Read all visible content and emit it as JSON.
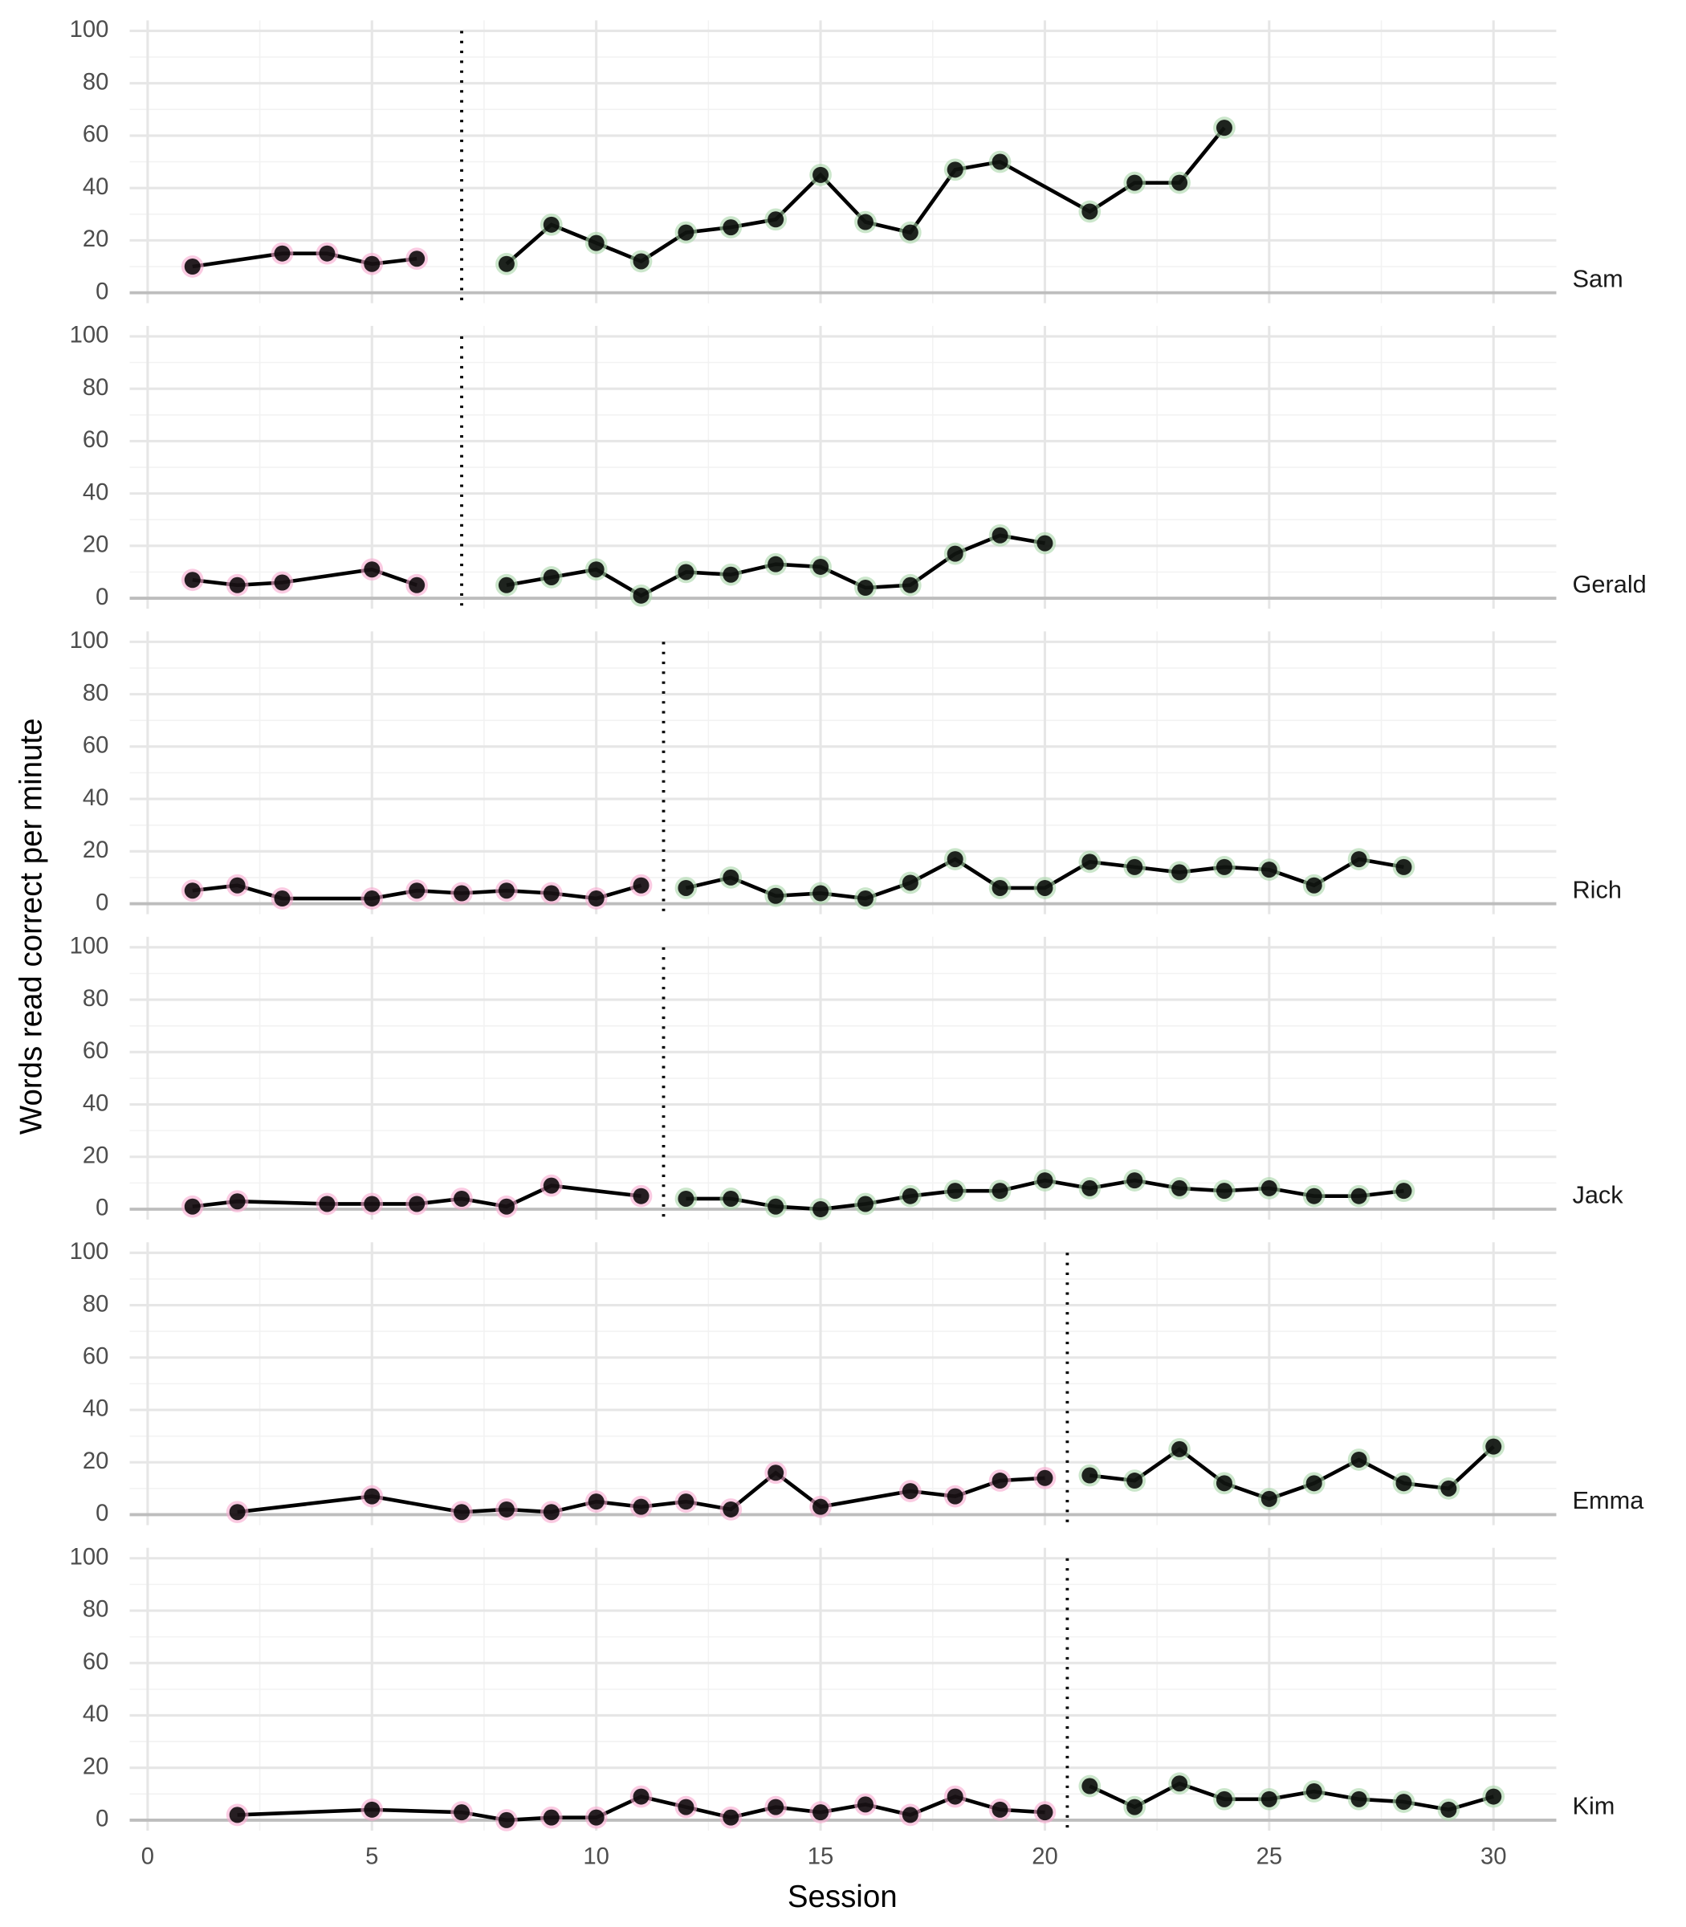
{
  "chart_data": {
    "type": "line",
    "xlabel": "Session",
    "ylabel": "Words read correct per minute",
    "xlim": [
      -0.4,
      31.4
    ],
    "ylim": [
      -4,
      104
    ],
    "xticks": [
      0,
      5,
      10,
      15,
      20,
      25,
      30
    ],
    "yticks": [
      0,
      20,
      40,
      60,
      80,
      100
    ],
    "grid": true,
    "line_color": "#000000",
    "panels": [
      {
        "label": "Sam",
        "phase_change": 7,
        "series": [
          {
            "color": "#f7a8cf",
            "x": [
              1,
              3,
              4,
              5,
              6
            ],
            "values": [
              10,
              15,
              15,
              11,
              13
            ]
          },
          {
            "color": "#a9d6a9",
            "x": [
              8,
              9,
              10,
              11,
              12,
              13,
              14,
              15,
              16,
              17,
              18,
              19,
              21,
              22,
              23,
              24
            ],
            "values": [
              11,
              26,
              19,
              12,
              23,
              25,
              28,
              45,
              27,
              23,
              47,
              50,
              31,
              42,
              42,
              63
            ]
          }
        ]
      },
      {
        "label": "Gerald",
        "phase_change": 7,
        "series": [
          {
            "color": "#f7a8cf",
            "x": [
              1,
              2,
              3,
              5,
              6
            ],
            "values": [
              7,
              5,
              6,
              11,
              5
            ]
          },
          {
            "color": "#a9d6a9",
            "x": [
              8,
              9,
              10,
              11,
              12,
              13,
              14,
              15,
              16,
              17,
              18,
              19,
              20
            ],
            "values": [
              5,
              8,
              11,
              1,
              10,
              9,
              13,
              12,
              4,
              5,
              17,
              24,
              21
            ]
          }
        ]
      },
      {
        "label": "Rich",
        "phase_change": 11.5,
        "series": [
          {
            "color": "#f7a8cf",
            "x": [
              1,
              2,
              3,
              5,
              6,
              7,
              8,
              9,
              10,
              11
            ],
            "values": [
              5,
              7,
              2,
              2,
              5,
              4,
              5,
              4,
              2,
              7
            ]
          },
          {
            "color": "#a9d6a9",
            "x": [
              12,
              13,
              14,
              15,
              16,
              17,
              18,
              19,
              20,
              21,
              22,
              23,
              24,
              25,
              26,
              27,
              28
            ],
            "values": [
              6,
              10,
              3,
              4,
              2,
              8,
              17,
              6,
              6,
              16,
              14,
              12,
              14,
              13,
              7,
              17,
              14
            ]
          }
        ]
      },
      {
        "label": "Jack",
        "phase_change": 11.5,
        "series": [
          {
            "color": "#f7a8cf",
            "x": [
              1,
              2,
              4,
              5,
              6,
              7,
              8,
              9,
              11
            ],
            "values": [
              1,
              3,
              2,
              2,
              2,
              4,
              1,
              9,
              5
            ]
          },
          {
            "color": "#a9d6a9",
            "x": [
              12,
              13,
              14,
              15,
              16,
              17,
              18,
              19,
              20,
              21,
              22,
              23,
              24,
              25,
              26,
              27,
              28
            ],
            "values": [
              4,
              4,
              1,
              0,
              2,
              5,
              7,
              7,
              11,
              8,
              11,
              8,
              7,
              8,
              5,
              5,
              7
            ]
          }
        ]
      },
      {
        "label": "Emma",
        "phase_change": 20.5,
        "series": [
          {
            "color": "#f7a8cf",
            "x": [
              2,
              5,
              7,
              8,
              9,
              10,
              11,
              12,
              13,
              14,
              15,
              17,
              18,
              19,
              20
            ],
            "values": [
              1,
              7,
              1,
              2,
              1,
              5,
              3,
              5,
              2,
              16,
              3,
              9,
              7,
              13,
              14
            ]
          },
          {
            "color": "#a9d6a9",
            "x": [
              21,
              22,
              23,
              24,
              25,
              26,
              27,
              28,
              29,
              30
            ],
            "values": [
              15,
              13,
              25,
              12,
              6,
              12,
              21,
              12,
              10,
              26
            ]
          }
        ]
      },
      {
        "label": "Kim",
        "phase_change": 20.5,
        "series": [
          {
            "color": "#f7a8cf",
            "x": [
              2,
              5,
              7,
              8,
              9,
              10,
              11,
              12,
              13,
              14,
              15,
              16,
              17,
              18,
              19,
              20
            ],
            "values": [
              2,
              4,
              3,
              0,
              1,
              1,
              9,
              5,
              1,
              5,
              3,
              6,
              2,
              9,
              4,
              3
            ]
          },
          {
            "color": "#a9d6a9",
            "x": [
              21,
              22,
              23,
              24,
              25,
              26,
              27,
              28,
              29,
              30
            ],
            "values": [
              13,
              5,
              14,
              8,
              8,
              11,
              8,
              7,
              4,
              9
            ]
          }
        ]
      }
    ]
  }
}
